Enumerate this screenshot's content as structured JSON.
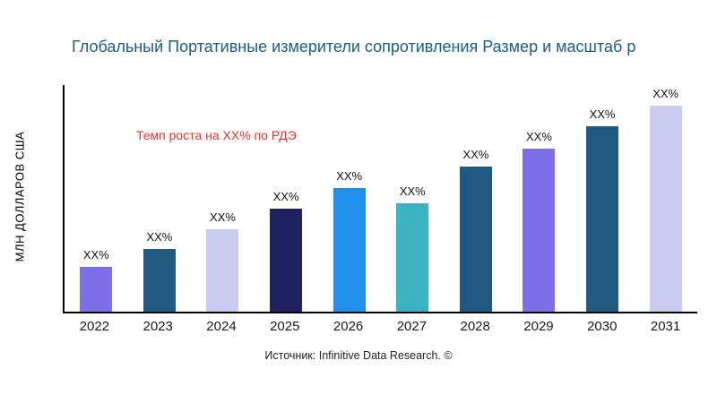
{
  "title": "Глобальный Портативные измерители сопротивления Размер и масштаб р",
  "growth_note": "Темп роста на XX% по РДЭ",
  "source": "Источник: Infinitive Data Research. ©",
  "colors": {
    "title": "#1b5e84",
    "annotation": "#e8312a",
    "axis": "#000000"
  },
  "chart_data": {
    "type": "bar",
    "title": "Глобальный Портативные измерители сопротивления Размер и масштаб р",
    "xlabel": "",
    "ylabel": "МЛН ДОЛЛАРОВ США",
    "categories": [
      "2022",
      "2023",
      "2024",
      "2025",
      "2026",
      "2027",
      "2028",
      "2029",
      "2030",
      "2031"
    ],
    "values": [
      50,
      70,
      92,
      115,
      138,
      121,
      162,
      182,
      207,
      230
    ],
    "values_note": "actual values not labeled on chart; bar heights in relative units (px), labels show XX% placeholders",
    "bar_labels": [
      "XX%",
      "XX%",
      "XX%",
      "XX%",
      "XX%",
      "XX%",
      "XX%",
      "XX%",
      "XX%",
      "XX%"
    ],
    "bar_colors": [
      "#7c6fe8",
      "#205a83",
      "#c9ccf0",
      "#1f2161",
      "#2090ea",
      "#3bb3c3",
      "#205a83",
      "#7c6fe8",
      "#205a83",
      "#c9ccf0"
    ],
    "annotation": "Темп роста на XX% по РДЭ",
    "grid": false,
    "legend": false,
    "source": "Источник: Infinitive Data Research. ©"
  }
}
